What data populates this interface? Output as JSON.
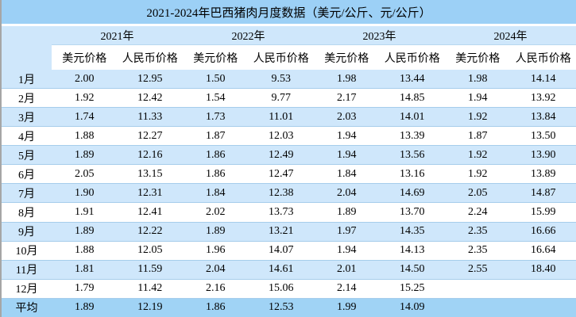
{
  "colors": {
    "title_bg": "#9cd0f6",
    "header_bg": "#cfe7fb",
    "row_alt_bg": "#cfe7fb",
    "row_bg": "#ffffff",
    "avg_row_bg": "#a0d3f5",
    "row_border": "#a6cdeb",
    "header_border": "#b7d7ef",
    "left_border": "#a6a6a6",
    "text": "#000000"
  },
  "chart_data": {
    "type": "table",
    "title": "2021-2024年巴西猪肉月度数据（美元/公斤、元/公斤）",
    "years": [
      "2021年",
      "2022年",
      "2023年",
      "2024年"
    ],
    "sub_headers": [
      "美元价格",
      "人民币价格"
    ],
    "rows": [
      {
        "label": "1月",
        "values": [
          "2.00",
          "12.95",
          "1.50",
          "9.53",
          "1.98",
          "13.44",
          "1.98",
          "14.14"
        ]
      },
      {
        "label": "2月",
        "values": [
          "1.92",
          "12.42",
          "1.54",
          "9.77",
          "2.17",
          "14.85",
          "1.94",
          "13.92"
        ]
      },
      {
        "label": "3月",
        "values": [
          "1.74",
          "11.33",
          "1.73",
          "11.01",
          "2.03",
          "14.01",
          "1.92",
          "13.84"
        ]
      },
      {
        "label": "4月",
        "values": [
          "1.88",
          "12.27",
          "1.87",
          "12.03",
          "1.94",
          "13.39",
          "1.87",
          "13.50"
        ]
      },
      {
        "label": "5月",
        "values": [
          "1.89",
          "12.16",
          "1.86",
          "12.49",
          "1.94",
          "13.56",
          "1.92",
          "13.90"
        ]
      },
      {
        "label": "6月",
        "values": [
          "2.05",
          "13.15",
          "1.86",
          "12.47",
          "1.84",
          "13.16",
          "1.92",
          "13.89"
        ]
      },
      {
        "label": "7月",
        "values": [
          "1.90",
          "12.31",
          "1.84",
          "12.38",
          "2.04",
          "14.69",
          "2.05",
          "14.87"
        ]
      },
      {
        "label": "8月",
        "values": [
          "1.91",
          "12.41",
          "2.02",
          "13.73",
          "1.89",
          "13.70",
          "2.24",
          "15.99"
        ]
      },
      {
        "label": "9月",
        "values": [
          "1.89",
          "12.22",
          "1.89",
          "13.21",
          "1.97",
          "14.35",
          "2.35",
          "16.66"
        ]
      },
      {
        "label": "10月",
        "values": [
          "1.88",
          "12.05",
          "1.96",
          "14.07",
          "1.94",
          "14.13",
          "2.35",
          "16.64"
        ]
      },
      {
        "label": "11月",
        "values": [
          "1.81",
          "11.59",
          "2.04",
          "14.61",
          "2.01",
          "14.50",
          "2.55",
          "18.40"
        ]
      },
      {
        "label": "12月",
        "values": [
          "1.79",
          "11.42",
          "2.16",
          "15.06",
          "2.14",
          "15.25",
          "",
          ""
        ]
      },
      {
        "label": "平均",
        "values": [
          "1.89",
          "12.19",
          "1.86",
          "12.53",
          "1.99",
          "14.09",
          "",
          ""
        ],
        "average": true
      }
    ]
  }
}
